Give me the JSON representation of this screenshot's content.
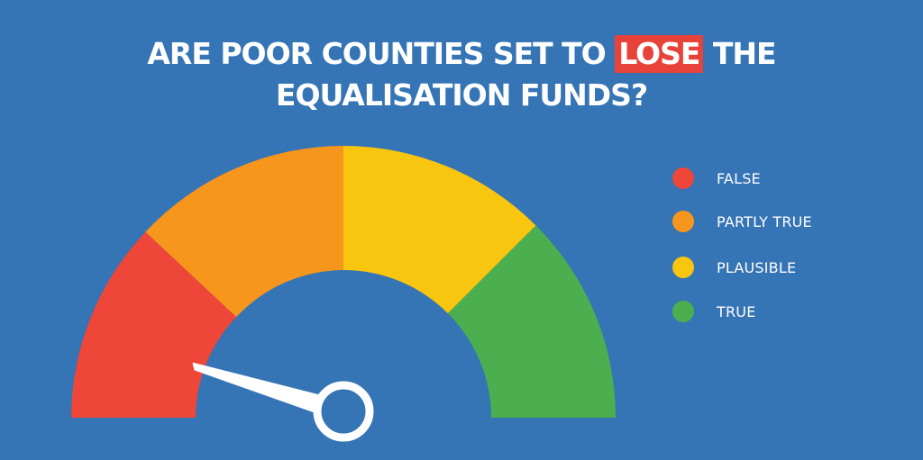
{
  "title": {
    "line1_before": "ARE POOR COUNTIES SET TO ",
    "line1_highlight": "LOSE",
    "line1_after": " THE",
    "line2": "EQUALISATION FUNDS?"
  },
  "colors": {
    "background": "#3574b5",
    "false": "#ee4638",
    "partly_true": "#f7961d",
    "plausible": "#f8c50f",
    "true": "#4caf4f",
    "highlight": "#e8433a",
    "needle": "#ffffff"
  },
  "gauge": {
    "segments": [
      {
        "key": "false",
        "label": "FALSE",
        "color": "#ee4638"
      },
      {
        "key": "partly_true",
        "label": "PARTLY TRUE",
        "color": "#f7961d"
      },
      {
        "key": "plausible",
        "label": "PLAUSIBLE",
        "color": "#f8c50f"
      },
      {
        "key": "true",
        "label": "TRUE",
        "color": "#4caf4f"
      }
    ],
    "verdict": "FALSE"
  },
  "legend": [
    {
      "label": "FALSE",
      "color": "#ee4638"
    },
    {
      "label": "PARTLY TRUE",
      "color": "#f7961d"
    },
    {
      "label": "PLAUSIBLE",
      "color": "#f8c50f"
    },
    {
      "label": "TRUE",
      "color": "#4caf4f"
    }
  ]
}
